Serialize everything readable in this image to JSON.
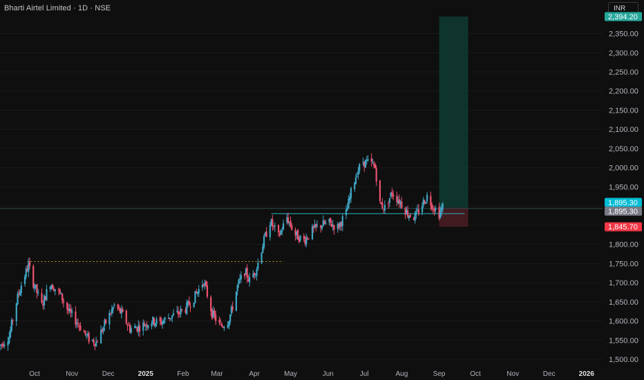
{
  "header": {
    "title": "Bharti Airtel Limited · 1D · NSE",
    "currency": "INR"
  },
  "colors": {
    "up": "#26a69a",
    "upBody": "#3fa7c6",
    "down": "#ef5370",
    "bg": "#0f0f0f",
    "target": "#0e3b30",
    "stop": "#4a1d23"
  },
  "chart_data": {
    "type": "candlestick",
    "ylim": [
      1490,
      2405
    ],
    "y_ticks": [
      1500,
      1550,
      1600,
      1650,
      1700,
      1750,
      1800,
      1850,
      1900,
      1950,
      2000,
      2050,
      2100,
      2150,
      2200,
      2250,
      2300,
      2350
    ],
    "y_tick_labels": [
      "1,500.00",
      "1,550.00",
      "1,600.00",
      "1,650.00",
      "1,700.00",
      "1,750.00",
      "1,800.00",
      "1,850.00",
      "1,900.00",
      "1,950.00",
      "2,000.00",
      "2,050.00",
      "2,100.00",
      "2,150.00",
      "2,200.00",
      "2,250.00",
      "2,300.00",
      "2,350.00"
    ],
    "x_labels": [
      {
        "label": "Oct",
        "date": "2024-10-01"
      },
      {
        "label": "Nov",
        "date": "2024-11-01"
      },
      {
        "label": "Dec",
        "date": "2024-12-01"
      },
      {
        "label": "2025",
        "date": "2025-01-01",
        "bold": true
      },
      {
        "label": "Feb",
        "date": "2025-02-01"
      },
      {
        "label": "Mar",
        "date": "2025-03-01"
      },
      {
        "label": "Apr",
        "date": "2025-04-01"
      },
      {
        "label": "May",
        "date": "2025-05-01"
      },
      {
        "label": "Jun",
        "date": "2025-06-01"
      },
      {
        "label": "Jul",
        "date": "2025-07-01"
      },
      {
        "label": "Aug",
        "date": "2025-08-01"
      },
      {
        "label": "Sep",
        "date": "2025-09-01"
      },
      {
        "label": "Oct",
        "date": "2025-10-01"
      },
      {
        "label": "Nov",
        "date": "2025-11-01"
      },
      {
        "label": "Dec",
        "date": "2025-12-01"
      },
      {
        "label": "2026",
        "date": "2026-01-01",
        "bold": true
      }
    ],
    "price_path": [
      [
        "2024-09-02",
        1535
      ],
      [
        "2024-09-10",
        1560
      ],
      [
        "2024-09-16",
        1650
      ],
      [
        "2024-09-20",
        1695
      ],
      [
        "2024-09-26",
        1745
      ],
      [
        "2024-09-30",
        1700
      ],
      [
        "2024-10-07",
        1640
      ],
      [
        "2024-10-14",
        1700
      ],
      [
        "2024-10-22",
        1670
      ],
      [
        "2024-10-30",
        1620
      ],
      [
        "2024-11-07",
        1590
      ],
      [
        "2024-11-14",
        1555
      ],
      [
        "2024-11-21",
        1545
      ],
      [
        "2024-11-28",
        1590
      ],
      [
        "2024-12-06",
        1640
      ],
      [
        "2024-12-12",
        1620
      ],
      [
        "2024-12-19",
        1580
      ],
      [
        "2024-12-27",
        1585
      ],
      [
        "2025-01-06",
        1600
      ],
      [
        "2025-01-13",
        1595
      ],
      [
        "2025-01-20",
        1610
      ],
      [
        "2025-01-28",
        1620
      ],
      [
        "2025-02-04",
        1635
      ],
      [
        "2025-02-11",
        1665
      ],
      [
        "2025-02-18",
        1705
      ],
      [
        "2025-02-25",
        1620
      ],
      [
        "2025-03-04",
        1585
      ],
      [
        "2025-03-10",
        1600
      ],
      [
        "2025-03-13",
        1625
      ],
      [
        "2025-03-18",
        1690
      ],
      [
        "2025-03-24",
        1730
      ],
      [
        "2025-03-28",
        1705
      ],
      [
        "2025-04-03",
        1740
      ],
      [
        "2025-04-08",
        1800
      ],
      [
        "2025-04-14",
        1860
      ],
      [
        "2025-04-21",
        1820
      ],
      [
        "2025-04-28",
        1870
      ],
      [
        "2025-05-05",
        1825
      ],
      [
        "2025-05-12",
        1810
      ],
      [
        "2025-05-19",
        1835
      ],
      [
        "2025-05-26",
        1850
      ],
      [
        "2025-06-02",
        1855
      ],
      [
        "2025-06-09",
        1845
      ],
      [
        "2025-06-16",
        1880
      ],
      [
        "2025-06-20",
        1935
      ],
      [
        "2025-06-25",
        1990
      ],
      [
        "2025-06-30",
        2015
      ],
      [
        "2025-07-07",
        2010
      ],
      [
        "2025-07-10",
        2000
      ],
      [
        "2025-07-14",
        1905
      ],
      [
        "2025-07-18",
        1895
      ],
      [
        "2025-07-24",
        1935
      ],
      [
        "2025-07-31",
        1910
      ],
      [
        "2025-08-06",
        1880
      ],
      [
        "2025-08-12",
        1870
      ],
      [
        "2025-08-18",
        1905
      ],
      [
        "2025-08-22",
        1925
      ],
      [
        "2025-08-27",
        1900
      ],
      [
        "2025-09-01",
        1880
      ],
      [
        "2025-09-04",
        1898
      ]
    ],
    "annotations": {
      "resistance_line": {
        "price": 1755,
        "from": "2024-09-25",
        "to": "2025-04-25"
      },
      "horizontal_line": {
        "price": 1880,
        "from": "2025-04-15",
        "to": "2025-09-22"
      },
      "position": {
        "from": "2025-09-01",
        "to": "2025-09-25",
        "entry": 1895.3,
        "target": 2394.2,
        "stop": 1845.7
      },
      "current_price_line": 1895.3
    },
    "price_tags": [
      {
        "label": "2,394.20",
        "price": 2394.2,
        "color": "#26a69a"
      },
      {
        "label": "1,895.30",
        "price": 1909.5,
        "color": "#00bcd4"
      },
      {
        "label": "1,895.30",
        "price": 1886.5,
        "color": "#787b86"
      },
      {
        "label": "1,845.70",
        "price": 1845.7,
        "color": "#f23645"
      }
    ]
  }
}
